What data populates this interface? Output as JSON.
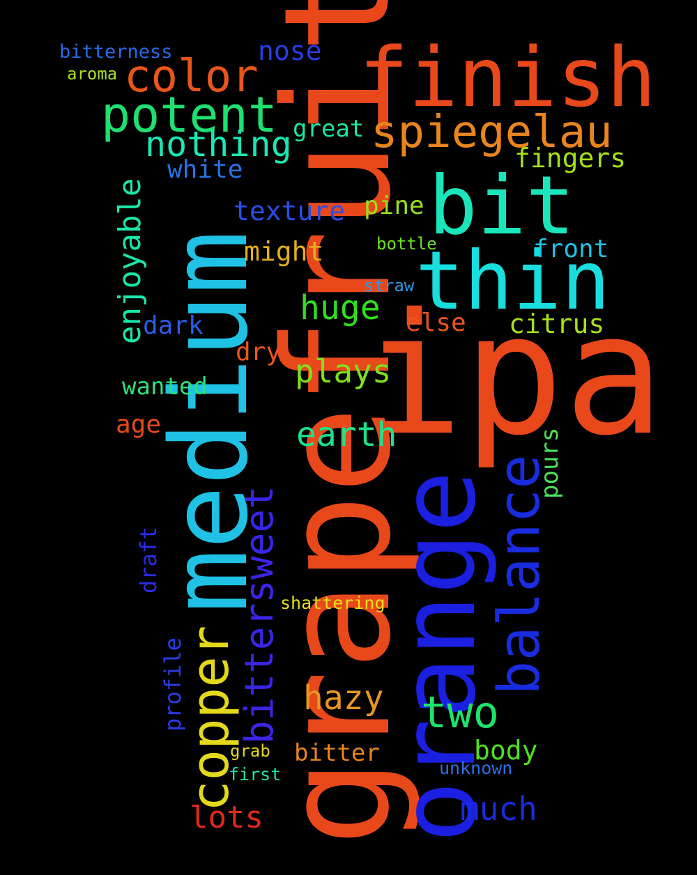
{
  "words": {
    "grapefruit": {
      "text": "grapefruit",
      "color": "#e8481a"
    },
    "ipa": {
      "text": "ipa",
      "color": "#e8481a"
    },
    "medium": {
      "text": "medium",
      "color": "#1fc1e4"
    },
    "orange": {
      "text": "orange",
      "color": "#1a1fe0"
    },
    "finish": {
      "text": "finish",
      "color": "#e8481a"
    },
    "thin": {
      "text": "thin",
      "color": "#18dede"
    },
    "bit": {
      "text": "bit",
      "color": "#1be6bb"
    },
    "balance": {
      "text": "balance",
      "color": "#1a2cdf"
    },
    "copper": {
      "text": "copper",
      "color": "#e3d81a"
    },
    "bittersweet": {
      "text": "bittersweet",
      "color": "#3a25e6"
    },
    "spiegelau": {
      "text": "spiegelau",
      "color": "#e8851f"
    },
    "potent": {
      "text": "potent",
      "color": "#1ee070"
    },
    "color": {
      "text": "color",
      "color": "#e8561a"
    },
    "enjoyable": {
      "text": "enjoyable",
      "color": "#1be6aa"
    },
    "nothing": {
      "text": "nothing",
      "color": "#1be6b5"
    },
    "two": {
      "text": "two",
      "color": "#1de36b"
    },
    "hazy": {
      "text": "hazy",
      "color": "#e8961f"
    },
    "earth": {
      "text": "earth",
      "color": "#1be38c"
    },
    "plays": {
      "text": "plays",
      "color": "#7ee01b"
    },
    "huge": {
      "text": "huge",
      "color": "#2ee01b"
    },
    "much": {
      "text": "much",
      "color": "#1a2cdf"
    },
    "lots": {
      "text": "lots",
      "color": "#e02a1a"
    },
    "texture": {
      "text": "texture",
      "color": "#2a4ee6"
    },
    "nose": {
      "text": "nose",
      "color": "#2a3ce6"
    },
    "pine": {
      "text": "pine",
      "color": "#9ae01b"
    },
    "fingers": {
      "text": "fingers",
      "color": "#a6e01b"
    },
    "citrus": {
      "text": "citrus",
      "color": "#a8e01b"
    },
    "front": {
      "text": "front",
      "color": "#1fc1e4"
    },
    "might": {
      "text": "might",
      "color": "#e3b01a"
    },
    "white": {
      "text": "white",
      "color": "#2a72e6"
    },
    "great": {
      "text": "great",
      "color": "#1be6a0"
    },
    "dark": {
      "text": "dark",
      "color": "#2a5ce6"
    },
    "else": {
      "text": "else",
      "color": "#e8561a"
    },
    "wanted": {
      "text": "wanted",
      "color": "#2ee07a"
    },
    "dry": {
      "text": "dry",
      "color": "#e8561a"
    },
    "age": {
      "text": "age",
      "color": "#e8481a"
    },
    "pours": {
      "text": "pours",
      "color": "#4ee05a"
    },
    "body": {
      "text": "body",
      "color": "#4ee01b"
    },
    "bitter": {
      "text": "bitter",
      "color": "#e8851f"
    },
    "profile": {
      "text": "profile",
      "color": "#2a3ce6"
    },
    "draft": {
      "text": "draft",
      "color": "#2a2ce6"
    },
    "bitterness": {
      "text": "bitterness",
      "color": "#2a6ae6"
    },
    "aroma": {
      "text": "aroma",
      "color": "#a6e01b"
    },
    "bottle": {
      "text": "bottle",
      "color": "#6ee01b"
    },
    "straw": {
      "text": "straw",
      "color": "#2a9ae6"
    },
    "shattering": {
      "text": "shattering",
      "color": "#e3e01a"
    },
    "grab": {
      "text": "grab",
      "color": "#e3d81a"
    },
    "first": {
      "text": "first",
      "color": "#1be6a0"
    },
    "unknown": {
      "text": "unknown",
      "color": "#2a72e6"
    }
  }
}
